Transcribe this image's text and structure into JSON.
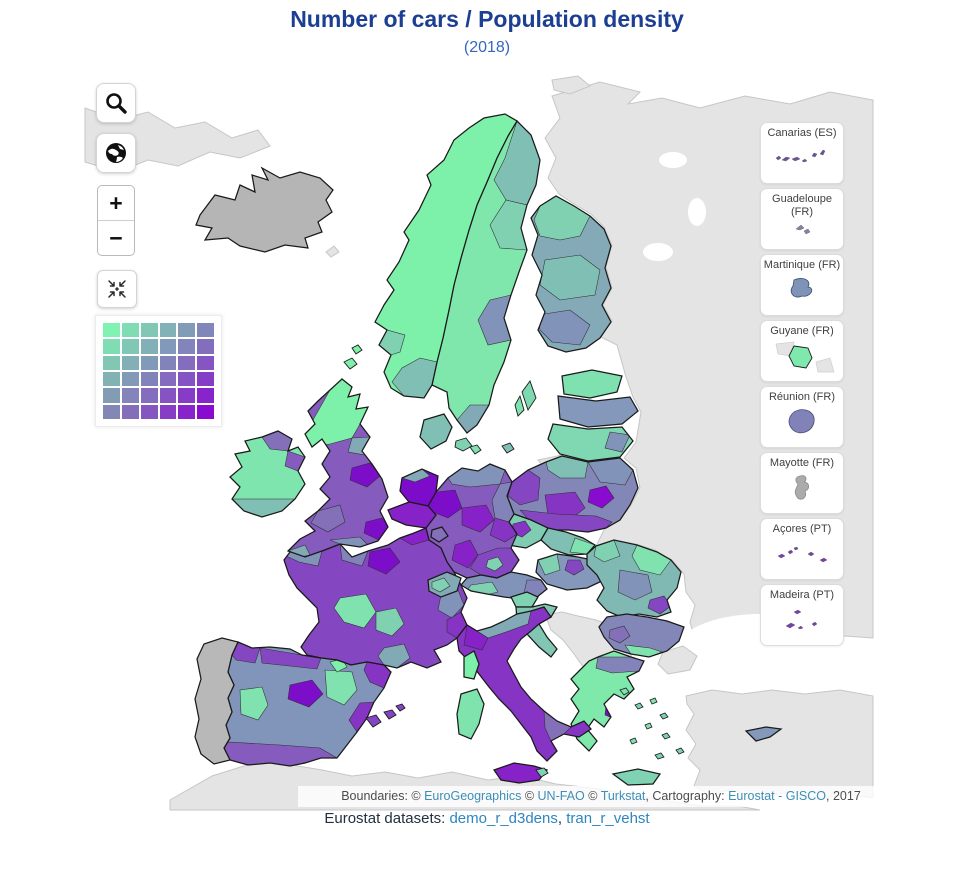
{
  "header": {
    "title": "Number of cars / Population density",
    "subtitle": "(2018)",
    "title_color": "#1c3f94",
    "subtitle_color": "#3566c4"
  },
  "controls": {
    "zoom_in_label": "+",
    "zoom_out_label": "−"
  },
  "legend": {
    "rows": 6,
    "cols": 6,
    "colors": [
      "#80F2B2",
      "#80DDB3",
      "#80C7B4",
      "#81B2B6",
      "#819CB7",
      "#8187B8",
      "#80DDB3",
      "#81C7B5",
      "#81B0B7",
      "#829AB9",
      "#8284BB",
      "#836EBD",
      "#81C7B3",
      "#82B0B6",
      "#829AB9",
      "#8383BC",
      "#846CBF",
      "#8555C2",
      "#81B2B4",
      "#829AB8",
      "#8383BB",
      "#846BBF",
      "#8554C3",
      "#863DC6",
      "#829CB4",
      "#8384B9",
      "#846CBE",
      "#8654C2",
      "#873CC7",
      "#8824CB",
      "#8287B5",
      "#846EBA",
      "#8555C0",
      "#873DC5",
      "#8824CB",
      "#8A0BD0"
    ]
  },
  "map": {
    "sea": "#ffffff",
    "nodata_fill": "#e4e4e4",
    "palette": {
      "mint": "#7df0a9",
      "green": "#80e2af",
      "teal_green": "#80d0b2",
      "teal": "#80bfb3",
      "slate_teal": "#82a9b6",
      "slate": "#8193b9",
      "slate_purple": "#8283b9",
      "purple_light": "#8470b9",
      "purple2": "#855cbd",
      "purple3": "#8547c1",
      "purple4": "#8634c4",
      "purple5": "#8722c8",
      "vivid": "#7c0dc9",
      "deep": "#8a0bd0"
    },
    "regions": {
      "iceland": "#b5b5b5",
      "portugal": "#b8b8b8",
      "norway": "#7df0a9",
      "sweden": "#7fe7ac",
      "finland": "#84aab8",
      "estonia": "#7fe0b0",
      "latvia": "#8398ba",
      "lithuania": "#7fd8b2",
      "denmark": "#80bfb3",
      "uk": "#855cbd",
      "ireland": "#7fe5ae",
      "france": "#8547c1",
      "netherlands": "#7c0bca",
      "belgium": "#8722c8",
      "luxembourg": "#8470b9",
      "germany": "#855cbd",
      "switzerland": "#82a9b6",
      "austria": "#8193b9",
      "czechia": "#80ccb2",
      "slovakia": "#80bfb3",
      "hungary": "#8398ba",
      "poland": "#8287b8",
      "slovenia": "#7fd3b2",
      "croatia": "#80c6b3",
      "romania": "#80b8b4",
      "bulgaria": "#8287b7",
      "greece": "#7fe9ab",
      "crete": "#7fd2b2",
      "spain": "#8195ba",
      "italy": "#8634c4",
      "sicily": "#8722c8",
      "sardinia": "#7fe3ad",
      "corsica": "#7df0a9",
      "cyprus": "#8398ba",
      "balearics": "#8545c2",
      "gotland": "#7fd9b0"
    }
  },
  "insets": [
    {
      "label": "Canarias (ES)",
      "color": "#6f4f9e"
    },
    {
      "label": "Guadeloupe (FR)",
      "color": "#8d80a4"
    },
    {
      "label": "Martinique (FR)",
      "color": "#7e93b7"
    },
    {
      "label": "Guyane (FR)",
      "color": "#7fe9ad"
    },
    {
      "label": "Réunion (FR)",
      "color": "#8082b8"
    },
    {
      "label": "Mayotte (FR)",
      "color": "#ababab"
    },
    {
      "label": "Açores (PT)",
      "color": "#7a3fae"
    },
    {
      "label": "Madeira (PT)",
      "color": "#7a3fae"
    }
  ],
  "attribution": {
    "line1": [
      {
        "text": "Boundaries: © ",
        "link": false
      },
      {
        "text": "EuroGeographics",
        "link": true
      },
      {
        "text": " © ",
        "link": false
      },
      {
        "text": "UN-FAO",
        "link": true
      },
      {
        "text": " © ",
        "link": false
      },
      {
        "text": "Turkstat",
        "link": true
      },
      {
        "text": ", Cartography: ",
        "link": false
      },
      {
        "text": "Eurostat - GISCO",
        "link": true
      },
      {
        "text": ", 2017",
        "link": false
      }
    ],
    "line2": [
      {
        "text": "Eurostat datasets: ",
        "link": false
      },
      {
        "text": "demo_r_d3dens",
        "link": true
      },
      {
        "text": ", ",
        "link": false
      },
      {
        "text": "tran_r_vehst",
        "link": true
      }
    ]
  }
}
